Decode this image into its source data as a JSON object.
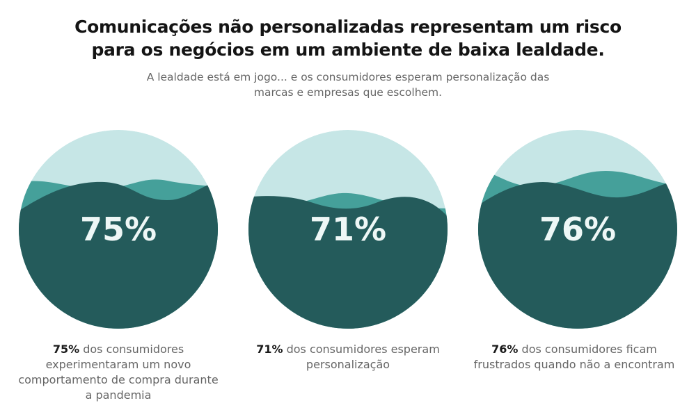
{
  "header": {
    "title_line1": "Comunicações não personalizadas representam um risco",
    "title_line2": "para os negócios em um ambiente de baixa lealdade.",
    "subtitle_line1": "A lealdade está em jogo... e os consumidores esperam personalização das",
    "subtitle_line2": "marcas e empresas que escolhem."
  },
  "colors": {
    "light": "#c6e6e6",
    "mid": "#45a09a",
    "dark": "#245b5b"
  },
  "stats": [
    {
      "value": "75%",
      "bold": "75%",
      "text": " dos consumidores experimentaram um novo comportamento de compra durante a pandemia"
    },
    {
      "value": "71%",
      "bold": "71%",
      "text": " dos consumidores esperam personalização"
    },
    {
      "value": "76%",
      "bold": "76%",
      "text": " dos consumidores ficam frustrados quando não a encontram"
    }
  ]
}
